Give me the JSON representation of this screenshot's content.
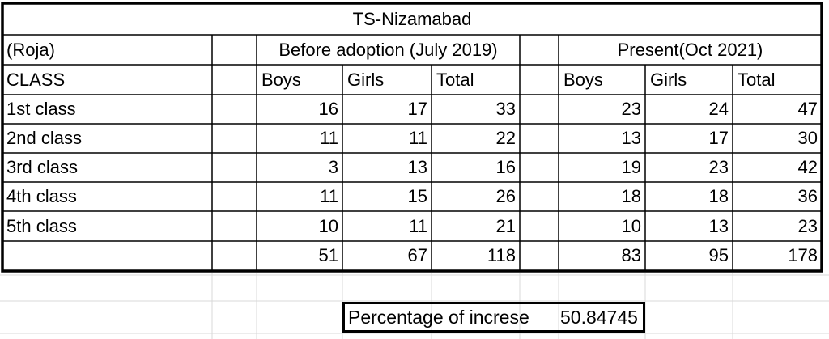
{
  "title": "TS-Nizamabad",
  "school_label": "(Roja)",
  "class_header": "CLASS",
  "before_header": "Before adoption (July 2019)",
  "present_header": "Present(Oct 2021)",
  "sub_headers": {
    "before": [
      "Boys",
      "Girls",
      "Total"
    ],
    "present": [
      "Boys",
      "Girls",
      "Total"
    ]
  },
  "rows": [
    {
      "label": "1st class",
      "before": [
        "16",
        "17",
        "33"
      ],
      "present": [
        "23",
        "24",
        "47"
      ]
    },
    {
      "label": "2nd class",
      "before": [
        "11",
        "11",
        "22"
      ],
      "present": [
        "13",
        "17",
        "30"
      ]
    },
    {
      "label": "3rd class",
      "before": [
        "3",
        "13",
        "16"
      ],
      "present": [
        "19",
        "23",
        "42"
      ]
    },
    {
      "label": "4th class",
      "before": [
        "11",
        "15",
        "26"
      ],
      "present": [
        "18",
        "18",
        "36"
      ]
    },
    {
      "label": "5th class",
      "before": [
        "10",
        "11",
        "21"
      ],
      "present": [
        "10",
        "13",
        "23"
      ]
    }
  ],
  "totals": {
    "before": [
      "51",
      "67",
      "118"
    ],
    "present": [
      "83",
      "95",
      "178"
    ]
  },
  "summary": {
    "label": "Percentage of increse",
    "value": "50.84745"
  }
}
